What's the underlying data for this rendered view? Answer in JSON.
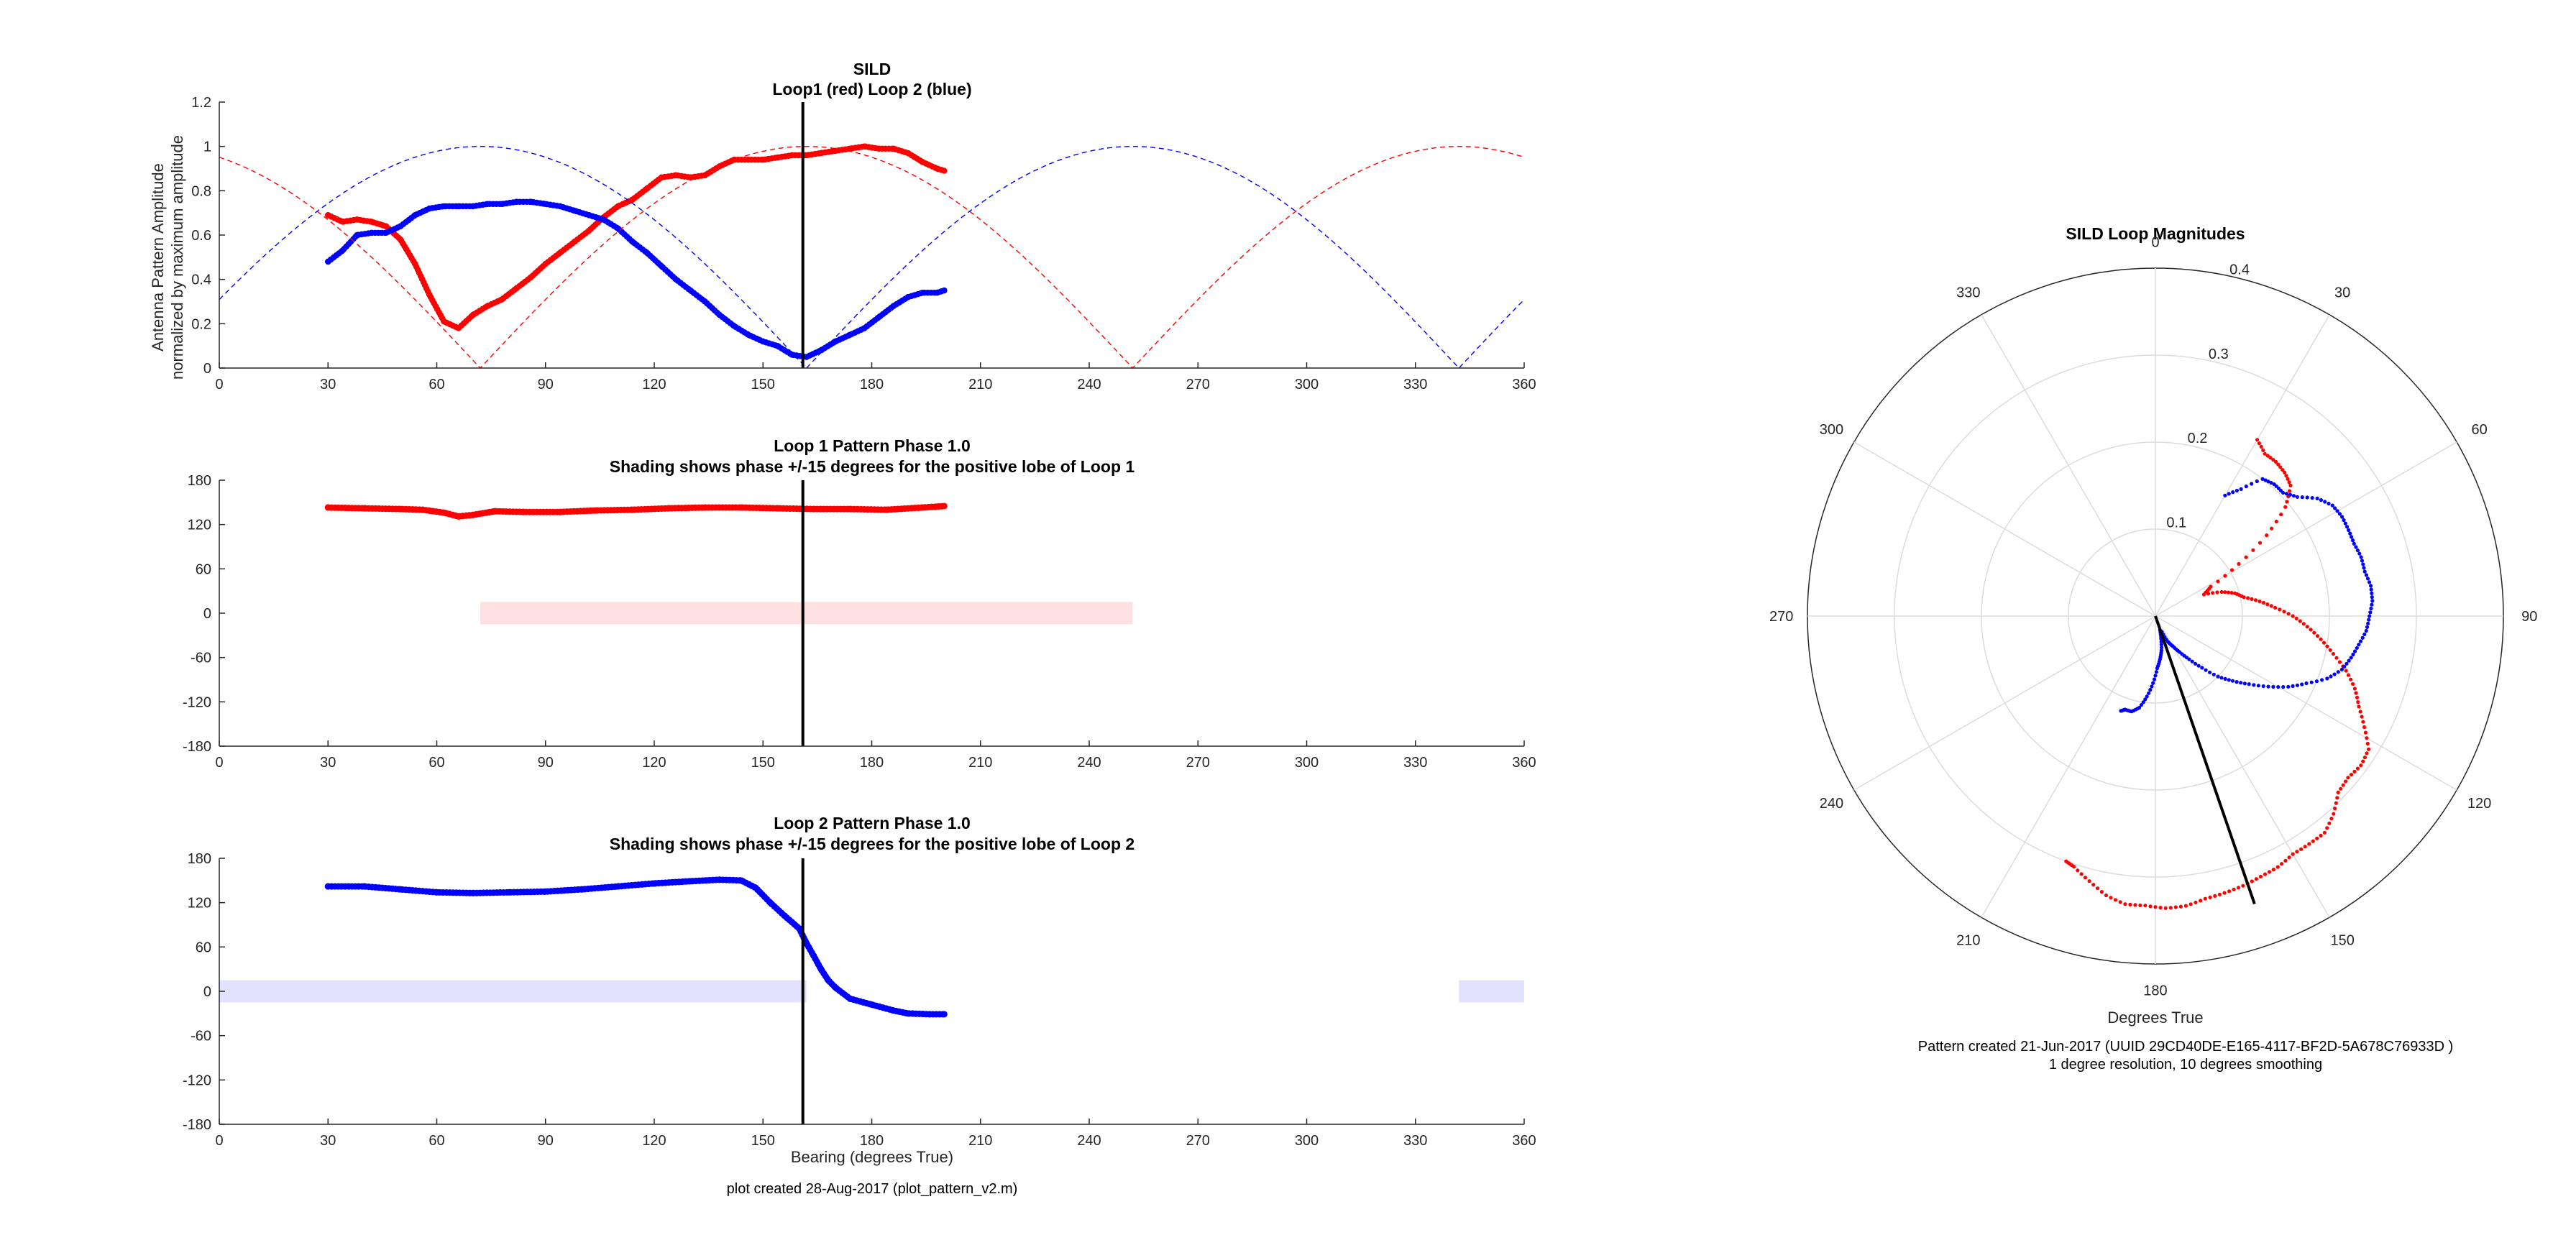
{
  "chart_data": [
    {
      "type": "line",
      "title": "SILD",
      "subtitle": "Loop1 (red) Loop 2 (blue)",
      "ylabel_line1": "Antenna Pattern Amplitude",
      "ylabel_line2": "normalized by maximum amplitude",
      "xlabel": "",
      "xlim": [
        0,
        360
      ],
      "ylim": [
        0,
        1.2
      ],
      "xticks": [
        0,
        30,
        60,
        90,
        120,
        150,
        180,
        210,
        240,
        270,
        300,
        330,
        360
      ],
      "yticks": [
        0,
        0.2,
        0.4,
        0.6,
        0.8,
        1,
        1.2
      ],
      "bearing_line": 161,
      "series": [
        {
          "color": "#ff0000",
          "style": "dots",
          "x": [
            30,
            34,
            38,
            42,
            46,
            50,
            54,
            58,
            62,
            66,
            70,
            74,
            78,
            82,
            86,
            90,
            94,
            98,
            102,
            106,
            110,
            114,
            118,
            122,
            126,
            130,
            134,
            138,
            142,
            146,
            150,
            154,
            158,
            162,
            166,
            170,
            174,
            178,
            182,
            186,
            190,
            194,
            198,
            200
          ],
          "y": [
            0.69,
            0.66,
            0.67,
            0.66,
            0.64,
            0.58,
            0.47,
            0.33,
            0.21,
            0.18,
            0.24,
            0.28,
            0.31,
            0.36,
            0.41,
            0.47,
            0.52,
            0.57,
            0.62,
            0.68,
            0.73,
            0.76,
            0.81,
            0.86,
            0.87,
            0.86,
            0.87,
            0.91,
            0.94,
            0.94,
            0.94,
            0.95,
            0.96,
            0.96,
            0.97,
            0.98,
            0.99,
            1.0,
            0.99,
            0.99,
            0.97,
            0.93,
            0.9,
            0.89
          ]
        },
        {
          "color": "#0000ff",
          "style": "dots",
          "x": [
            30,
            34,
            38,
            42,
            46,
            50,
            54,
            58,
            62,
            66,
            70,
            74,
            78,
            82,
            86,
            90,
            94,
            98,
            102,
            106,
            110,
            114,
            118,
            122,
            126,
            130,
            134,
            138,
            142,
            146,
            150,
            154,
            158,
            162,
            166,
            170,
            174,
            178,
            182,
            186,
            190,
            194,
            198,
            200
          ],
          "y": [
            0.48,
            0.53,
            0.6,
            0.61,
            0.61,
            0.64,
            0.69,
            0.72,
            0.73,
            0.73,
            0.73,
            0.74,
            0.74,
            0.75,
            0.75,
            0.74,
            0.73,
            0.71,
            0.69,
            0.67,
            0.63,
            0.57,
            0.52,
            0.46,
            0.4,
            0.35,
            0.3,
            0.24,
            0.19,
            0.15,
            0.12,
            0.1,
            0.06,
            0.05,
            0.08,
            0.12,
            0.15,
            0.18,
            0.23,
            0.28,
            0.32,
            0.34,
            0.34,
            0.35
          ]
        },
        {
          "color": "#ff0000",
          "style": "dashed",
          "model": "abs_cos",
          "peak_deg": 162,
          "x_start": 0,
          "x_end": 360
        },
        {
          "color": "#0000ff",
          "style": "dashed",
          "model": "abs_sin",
          "peak_deg": 162,
          "x_start": 0,
          "x_end": 360
        }
      ]
    },
    {
      "type": "scatter",
      "title": "Loop 1 Pattern Phase 1.0",
      "subtitle": "Shading shows phase +/-15 degrees for the positive lobe of Loop 1",
      "xlim": [
        0,
        360
      ],
      "ylim": [
        -180,
        180
      ],
      "xticks": [
        0,
        30,
        60,
        90,
        120,
        150,
        180,
        210,
        240,
        270,
        300,
        330,
        360
      ],
      "yticks": [
        -180,
        -120,
        -60,
        0,
        60,
        120,
        180
      ],
      "bearing_line": 161,
      "shading": [
        {
          "x0": 72,
          "x1": 252,
          "y0": -15,
          "y1": 15,
          "color": "#ffe0e0"
        }
      ],
      "series": [
        {
          "color": "#ff0000",
          "x": [
            30,
            40,
            50,
            56,
            62,
            66,
            70,
            76,
            84,
            94,
            104,
            114,
            124,
            134,
            144,
            154,
            164,
            174,
            184,
            194,
            200
          ],
          "y": [
            143,
            142,
            141,
            140,
            136,
            131,
            133,
            138,
            137,
            137,
            139,
            140,
            142,
            143,
            143,
            142,
            141,
            141,
            140,
            143,
            145
          ]
        }
      ]
    },
    {
      "type": "scatter",
      "title": "Loop 2 Pattern Phase 1.0",
      "subtitle": "Shading shows phase +/-15 degrees for the positive lobe of Loop 2",
      "xlabel": "Bearing (degrees True)",
      "footer": "plot created 28-Aug-2017 (plot_pattern_v2.m)",
      "xlim": [
        0,
        360
      ],
      "ylim": [
        -180,
        180
      ],
      "xticks": [
        0,
        30,
        60,
        90,
        120,
        150,
        180,
        210,
        240,
        270,
        300,
        330,
        360
      ],
      "yticks": [
        -180,
        -120,
        -60,
        0,
        60,
        120,
        180
      ],
      "bearing_line": 161,
      "shading": [
        {
          "x0": 0,
          "x1": 162,
          "y0": -15,
          "y1": 15,
          "color": "#e2e2ff"
        },
        {
          "x0": 342,
          "x1": 360,
          "y0": -15,
          "y1": 15,
          "color": "#e2e2ff"
        }
      ],
      "series": [
        {
          "color": "#0000ff",
          "x": [
            30,
            40,
            50,
            60,
            70,
            80,
            90,
            100,
            110,
            120,
            130,
            138,
            144,
            148,
            152,
            156,
            160,
            162,
            164,
            166,
            168,
            170,
            174,
            180,
            186,
            190,
            196,
            200
          ],
          "y": [
            142,
            142,
            138,
            134,
            133,
            134,
            135,
            138,
            142,
            146,
            149,
            151,
            150,
            140,
            120,
            102,
            85,
            65,
            48,
            30,
            15,
            5,
            -10,
            -18,
            -26,
            -30,
            -31,
            -31
          ]
        }
      ]
    },
    {
      "type": "polar",
      "title": "SILD Loop Magnitudes",
      "xlabel": "Degrees True",
      "footer_line1": "Pattern created 21-Jun-2017 (UUID 29CD40DE-E165-4117-BF2D-5A678C76933D )",
      "footer_line2": "1 degree resolution, 10 degrees smoothing",
      "theta_direction": "clockwise",
      "theta_zero": "top",
      "rlim": [
        0,
        0.4
      ],
      "rticks": [
        0.1,
        0.2,
        0.3,
        0.4
      ],
      "theta_ticks": [
        0,
        30,
        60,
        90,
        120,
        150,
        180,
        210,
        240,
        270,
        300,
        330
      ],
      "bearing_line": {
        "theta": 161,
        "r": 0.35
      },
      "series": [
        {
          "color": "#ff0000",
          "theta": [
            30,
            34,
            38,
            42,
            46,
            50,
            54,
            58,
            62,
            66,
            70,
            74,
            78,
            82,
            86,
            90,
            94,
            98,
            102,
            106,
            110,
            114,
            118,
            122,
            126,
            130,
            134,
            138,
            142,
            146,
            150,
            154,
            158,
            162,
            166,
            170,
            174,
            178,
            182,
            186,
            190,
            194,
            198,
            200
          ],
          "r": [
            0.234,
            0.225,
            0.225,
            0.222,
            0.216,
            0.195,
            0.158,
            0.113,
            0.072,
            0.061,
            0.081,
            0.095,
            0.104,
            0.121,
            0.138,
            0.158,
            0.175,
            0.192,
            0.209,
            0.228,
            0.244,
            0.256,
            0.272,
            0.289,
            0.292,
            0.289,
            0.292,
            0.306,
            0.316,
            0.316,
            0.316,
            0.321,
            0.323,
            0.326,
            0.328,
            0.33,
            0.335,
            0.336,
            0.333,
            0.333,
            0.326,
            0.314,
            0.303,
            0.3
          ]
        },
        {
          "color": "#0000ff",
          "theta": [
            30,
            34,
            38,
            42,
            46,
            50,
            54,
            58,
            62,
            66,
            70,
            74,
            78,
            82,
            86,
            90,
            94,
            98,
            102,
            106,
            110,
            114,
            118,
            122,
            126,
            130,
            134,
            138,
            142,
            146,
            150,
            154,
            158,
            162,
            166,
            170,
            174,
            178,
            182,
            186,
            190,
            194,
            198,
            200
          ],
          "r": [
            0.16,
            0.176,
            0.2,
            0.204,
            0.204,
            0.213,
            0.23,
            0.24,
            0.243,
            0.243,
            0.243,
            0.246,
            0.246,
            0.25,
            0.25,
            0.246,
            0.243,
            0.236,
            0.23,
            0.223,
            0.21,
            0.19,
            0.173,
            0.153,
            0.133,
            0.116,
            0.1,
            0.08,
            0.063,
            0.05,
            0.04,
            0.033,
            0.02,
            0.017,
            0.027,
            0.04,
            0.05,
            0.06,
            0.077,
            0.093,
            0.107,
            0.113,
            0.113,
            0.116
          ]
        }
      ]
    }
  ]
}
